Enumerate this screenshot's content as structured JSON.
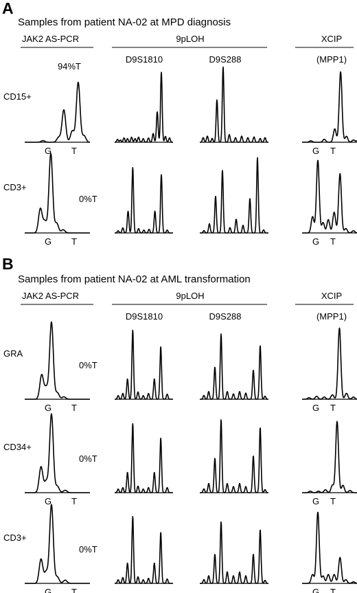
{
  "panels": [
    {
      "letter": "A",
      "title": "Samples from patient NA-02 at MPD diagnosis",
      "headers": {
        "jak2": "JAK2 AS-PCR",
        "loh": "9pLOH",
        "xcip": "XCIP",
        "loh_markers": [
          "D9S1810",
          "D9S288"
        ],
        "xcip_marker": "(MPP1)"
      },
      "rows": [
        {
          "label": "CD15+",
          "jak2_percent": "94%T",
          "jak2_alleles": [
            "G",
            "T"
          ],
          "xcip_alleles": [
            "G",
            "T"
          ],
          "jak2_peaks": [
            [
              0.28,
              0.02
            ],
            [
              0.52,
              0.06
            ],
            [
              0.6,
              0.4
            ],
            [
              0.73,
              0.14
            ],
            [
              0.82,
              0.74
            ],
            [
              0.91,
              0.08
            ]
          ],
          "d9s1810_peaks": [
            [
              0.05,
              0.04
            ],
            [
              0.1,
              0.03
            ],
            [
              0.16,
              0.06
            ],
            [
              0.22,
              0.05
            ],
            [
              0.29,
              0.07
            ],
            [
              0.35,
              0.05
            ],
            [
              0.41,
              0.07
            ],
            [
              0.49,
              0.05
            ],
            [
              0.58,
              0.06
            ],
            [
              0.66,
              0.12
            ],
            [
              0.73,
              0.42
            ],
            [
              0.8,
              0.96
            ],
            [
              0.87,
              0.08
            ],
            [
              0.94,
              0.06
            ]
          ],
          "d9s288_peaks": [
            [
              0.05,
              0.06
            ],
            [
              0.11,
              0.08
            ],
            [
              0.18,
              0.05
            ],
            [
              0.25,
              0.55
            ],
            [
              0.34,
              0.98
            ],
            [
              0.43,
              0.1
            ],
            [
              0.52,
              0.06
            ],
            [
              0.61,
              0.08
            ],
            [
              0.7,
              0.06
            ],
            [
              0.79,
              0.07
            ],
            [
              0.88,
              0.05
            ],
            [
              0.95,
              0.06
            ]
          ],
          "xcip_peaks": [
            [
              0.15,
              0.02
            ],
            [
              0.38,
              0.04
            ],
            [
              0.56,
              0.18
            ],
            [
              0.66,
              0.95
            ],
            [
              0.76,
              0.08
            ],
            [
              0.88,
              0.03
            ],
            [
              0.95,
              0.02
            ]
          ]
        },
        {
          "label": "CD3+",
          "jak2_percent": "0%T",
          "jak2_alleles": [
            "G",
            "T"
          ],
          "xcip_alleles": [
            "G",
            "T"
          ],
          "jak2_peaks": [
            [
              0.24,
              0.3
            ],
            [
              0.31,
              0.14
            ],
            [
              0.4,
              0.98
            ],
            [
              0.49,
              0.12
            ],
            [
              0.59,
              0.04
            ]
          ],
          "d9s1810_peaks": [
            [
              0.06,
              0.03
            ],
            [
              0.14,
              0.07
            ],
            [
              0.23,
              0.3
            ],
            [
              0.31,
              0.9
            ],
            [
              0.41,
              0.06
            ],
            [
              0.5,
              0.04
            ],
            [
              0.59,
              0.05
            ],
            [
              0.69,
              0.3
            ],
            [
              0.8,
              0.8
            ],
            [
              0.9,
              0.04
            ]
          ],
          "d9s288_peaks": [
            [
              0.06,
              0.03
            ],
            [
              0.14,
              0.12
            ],
            [
              0.23,
              0.48
            ],
            [
              0.33,
              0.82
            ],
            [
              0.44,
              0.07
            ],
            [
              0.53,
              0.18
            ],
            [
              0.63,
              0.1
            ],
            [
              0.73,
              0.45
            ],
            [
              0.84,
              0.98
            ],
            [
              0.93,
              0.04
            ]
          ],
          "xcip_peaks": [
            [
              0.18,
              0.22
            ],
            [
              0.27,
              0.98
            ],
            [
              0.36,
              0.14
            ],
            [
              0.45,
              0.18
            ],
            [
              0.55,
              0.28
            ],
            [
              0.65,
              0.8
            ],
            [
              0.75,
              0.06
            ],
            [
              0.88,
              0.03
            ]
          ]
        }
      ]
    },
    {
      "letter": "B",
      "title": "Samples from patient NA-02 at AML transformation",
      "headers": {
        "jak2": "JAK2 AS-PCR",
        "loh": "9pLOH",
        "xcip": "XCIP",
        "loh_markers": [
          "D9S1810",
          "D9S288"
        ],
        "xcip_marker": "(MPP1)"
      },
      "rows": [
        {
          "label": "GRA",
          "jak2_percent": "0%T",
          "jak2_alleles": [
            "G",
            "T"
          ],
          "xcip_alleles": [
            "G",
            "T"
          ],
          "jak2_peaks": [
            [
              0.26,
              0.3
            ],
            [
              0.33,
              0.14
            ],
            [
              0.41,
              0.95
            ],
            [
              0.5,
              0.08
            ],
            [
              0.6,
              0.03
            ]
          ],
          "d9s1810_peaks": [
            [
              0.06,
              0.05
            ],
            [
              0.14,
              0.08
            ],
            [
              0.22,
              0.28
            ],
            [
              0.31,
              0.95
            ],
            [
              0.4,
              0.1
            ],
            [
              0.49,
              0.05
            ],
            [
              0.58,
              0.08
            ],
            [
              0.68,
              0.28
            ],
            [
              0.79,
              0.72
            ],
            [
              0.9,
              0.07
            ]
          ],
          "d9s288_peaks": [
            [
              0.06,
              0.05
            ],
            [
              0.13,
              0.1
            ],
            [
              0.22,
              0.42
            ],
            [
              0.31,
              0.85
            ],
            [
              0.4,
              0.1
            ],
            [
              0.49,
              0.07
            ],
            [
              0.58,
              0.1
            ],
            [
              0.67,
              0.08
            ],
            [
              0.78,
              0.38
            ],
            [
              0.88,
              0.7
            ],
            [
              0.95,
              0.04
            ]
          ],
          "xcip_peaks": [
            [
              0.12,
              0.02
            ],
            [
              0.25,
              0.04
            ],
            [
              0.38,
              0.03
            ],
            [
              0.52,
              0.06
            ],
            [
              0.64,
              0.96
            ],
            [
              0.76,
              0.08
            ],
            [
              0.88,
              0.03
            ]
          ]
        },
        {
          "label": "CD34+",
          "jak2_percent": "0%T",
          "jak2_alleles": [
            "G",
            "T"
          ],
          "xcip_alleles": [
            "G",
            "T"
          ],
          "jak2_peaks": [
            [
              0.25,
              0.32
            ],
            [
              0.33,
              0.14
            ],
            [
              0.41,
              0.97
            ],
            [
              0.5,
              0.08
            ],
            [
              0.62,
              0.03
            ]
          ],
          "d9s1810_peaks": [
            [
              0.06,
              0.05
            ],
            [
              0.14,
              0.07
            ],
            [
              0.22,
              0.28
            ],
            [
              0.31,
              0.95
            ],
            [
              0.4,
              0.09
            ],
            [
              0.49,
              0.05
            ],
            [
              0.58,
              0.07
            ],
            [
              0.68,
              0.28
            ],
            [
              0.79,
              0.75
            ],
            [
              0.9,
              0.07
            ]
          ],
          "d9s288_peaks": [
            [
              0.06,
              0.05
            ],
            [
              0.13,
              0.12
            ],
            [
              0.22,
              0.45
            ],
            [
              0.31,
              0.95
            ],
            [
              0.4,
              0.12
            ],
            [
              0.49,
              0.08
            ],
            [
              0.58,
              0.12
            ],
            [
              0.67,
              0.08
            ],
            [
              0.78,
              0.48
            ],
            [
              0.88,
              0.85
            ],
            [
              0.95,
              0.04
            ]
          ],
          "xcip_peaks": [
            [
              0.14,
              0.02
            ],
            [
              0.28,
              0.02
            ],
            [
              0.4,
              0.04
            ],
            [
              0.52,
              0.1
            ],
            [
              0.6,
              0.96
            ],
            [
              0.7,
              0.1
            ],
            [
              0.82,
              0.03
            ]
          ]
        },
        {
          "label": "CD3+",
          "jak2_percent": "0%T",
          "jak2_alleles": [
            "G",
            "T"
          ],
          "xcip_alleles": [
            "G",
            "T"
          ],
          "jak2_peaks": [
            [
              0.25,
              0.3
            ],
            [
              0.33,
              0.14
            ],
            [
              0.41,
              0.97
            ],
            [
              0.5,
              0.08
            ],
            [
              0.62,
              0.04
            ]
          ],
          "d9s1810_peaks": [
            [
              0.06,
              0.05
            ],
            [
              0.14,
              0.08
            ],
            [
              0.22,
              0.28
            ],
            [
              0.31,
              0.92
            ],
            [
              0.4,
              0.09
            ],
            [
              0.49,
              0.05
            ],
            [
              0.58,
              0.07
            ],
            [
              0.68,
              0.28
            ],
            [
              0.79,
              0.7
            ],
            [
              0.9,
              0.06
            ]
          ],
          "d9s288_peaks": [
            [
              0.06,
              0.05
            ],
            [
              0.13,
              0.1
            ],
            [
              0.22,
              0.38
            ],
            [
              0.31,
              0.8
            ],
            [
              0.4,
              0.15
            ],
            [
              0.49,
              0.1
            ],
            [
              0.58,
              0.15
            ],
            [
              0.67,
              0.1
            ],
            [
              0.78,
              0.38
            ],
            [
              0.88,
              0.7
            ],
            [
              0.95,
              0.04
            ]
          ],
          "xcip_peaks": [
            [
              0.18,
              0.12
            ],
            [
              0.27,
              0.96
            ],
            [
              0.36,
              0.1
            ],
            [
              0.45,
              0.12
            ],
            [
              0.55,
              0.12
            ],
            [
              0.65,
              0.35
            ],
            [
              0.75,
              0.05
            ],
            [
              0.88,
              0.02
            ]
          ]
        }
      ]
    }
  ]
}
